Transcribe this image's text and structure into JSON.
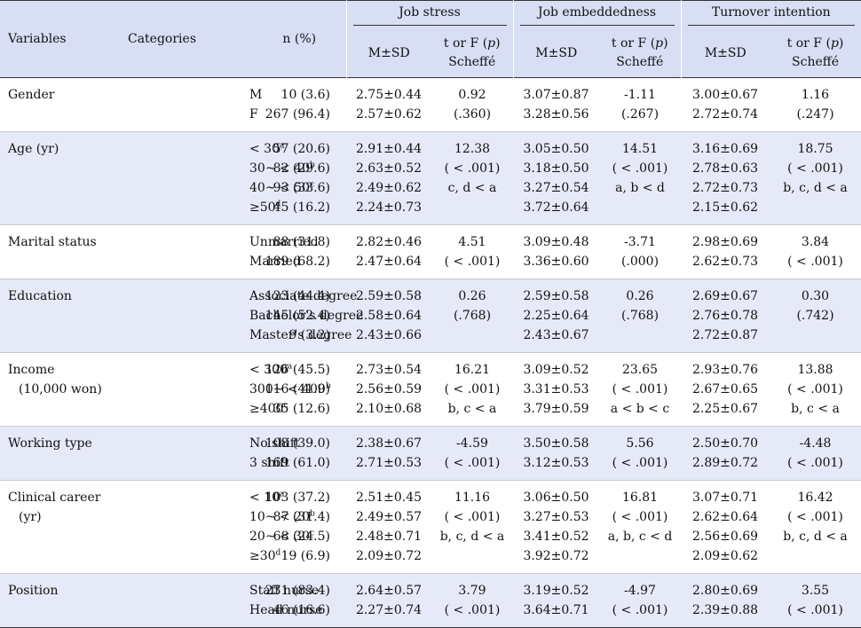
{
  "headers": {
    "variables": "Variables",
    "categories": "Categories",
    "n_pct": "n (%)",
    "groups": [
      "Job stress",
      "Job embeddedness",
      "Turnover intention"
    ],
    "msd": "M±SD",
    "test_a": "t or F (",
    "test_p": "p",
    "test_b": ")",
    "scheffe": "Scheffé"
  },
  "rows": [
    {
      "var": [
        "Gender"
      ],
      "cats": [
        [
          "M",
          ""
        ],
        [
          "F",
          ""
        ]
      ],
      "n": [
        "10 (3.6)",
        "267 (96.4)"
      ],
      "js_m": [
        "2.75±0.44",
        "2.57±0.62"
      ],
      "js_t": [
        "0.92",
        "(.360)"
      ],
      "je_m": [
        "3.07±0.87",
        "3.28±0.56"
      ],
      "je_t": [
        "-1.11",
        "(.267)"
      ],
      "ti_m": [
        "3.00±0.67",
        "2.72±0.74"
      ],
      "ti_t": [
        "1.16",
        "(.247)"
      ]
    },
    {
      "var": [
        "Age (yr)"
      ],
      "cats": [
        [
          "< 30",
          "a"
        ],
        [
          "30~ < 40",
          "b"
        ],
        [
          "40~ < 50",
          "c"
        ],
        [
          "≥50",
          "d"
        ]
      ],
      "n": [
        "57 (20.6)",
        "82 (29.6)",
        "93 (33.6)",
        "45 (16.2)"
      ],
      "js_m": [
        "2.91±0.44",
        "2.63±0.52",
        "2.49±0.62",
        "2.24±0.73"
      ],
      "js_t": [
        "12.38",
        "( < .001)",
        "c, d < a"
      ],
      "je_m": [
        "3.05±0.50",
        "3.18±0.50",
        "3.27±0.54",
        "3.72±0.64"
      ],
      "je_t": [
        "14.51",
        "( < .001)",
        "a, b < d"
      ],
      "ti_m": [
        "3.16±0.69",
        "2.78±0.63",
        "2.72±0.73",
        "2.15±0.62"
      ],
      "ti_t": [
        "18.75",
        "( < .001)",
        "b, c, d < a"
      ]
    },
    {
      "var": [
        "Marital status"
      ],
      "cats": [
        [
          "Unmarried",
          ""
        ],
        [
          "Married",
          ""
        ]
      ],
      "n": [
        "88 (31.8)",
        "189 (68.2)"
      ],
      "js_m": [
        "2.82±0.46",
        "2.47±0.64"
      ],
      "js_t": [
        "4.51",
        "( < .001)"
      ],
      "je_m": [
        "3.09±0.48",
        "3.36±0.60"
      ],
      "je_t": [
        "-3.71",
        "(.000)"
      ],
      "ti_m": [
        "2.98±0.69",
        "2.62±0.73"
      ],
      "ti_t": [
        "3.84",
        "( < .001)"
      ]
    },
    {
      "var": [
        "Education"
      ],
      "cats": [
        [
          "Associate degree",
          ""
        ],
        [
          "Bachelor's degree",
          ""
        ],
        [
          "Master's degree",
          ""
        ]
      ],
      "n": [
        "123 (44.4)",
        "145 (52.4)",
        "9 (3.2)"
      ],
      "js_m": [
        "2.59±0.58",
        "2.58±0.64",
        "2.43±0.66"
      ],
      "js_t": [
        "0.26",
        "(.768)"
      ],
      "je_m": [
        "2.59±0.58",
        "2.25±0.64",
        "2.43±0.67"
      ],
      "je_t": [
        "0.26",
        "(.768)"
      ],
      "ti_m": [
        "2.69±0.67",
        "2.76±0.78",
        "2.72±0.87"
      ],
      "ti_t": [
        "0.30",
        "(.742)"
      ]
    },
    {
      "var": [
        "Income",
        "(10,000 won)"
      ],
      "cats": [
        [
          "< 300",
          "a"
        ],
        [
          "300~ < 400",
          "b"
        ],
        [
          "≥400",
          "c"
        ]
      ],
      "n": [
        "126 (45.5)",
        "116 (41.9)",
        "35 (12.6)"
      ],
      "js_m": [
        "2.73±0.54",
        "2.56±0.59",
        "2.10±0.68"
      ],
      "js_t": [
        "16.21",
        "( < .001)",
        "b, c < a"
      ],
      "je_m": [
        "3.09±0.52",
        "3.31±0.53",
        "3.79±0.59"
      ],
      "je_t": [
        "23.65",
        "( < .001)",
        "a < b < c"
      ],
      "ti_m": [
        "2.93±0.76",
        "2.67±0.65",
        "2.25±0.67"
      ],
      "ti_t": [
        "13.88",
        "( < .001)",
        "b, c < a"
      ]
    },
    {
      "var": [
        "Working type"
      ],
      "cats": [
        [
          "No shift",
          ""
        ],
        [
          "3 shift",
          ""
        ]
      ],
      "n": [
        "108 (39.0)",
        "169 (61.0)"
      ],
      "js_m": [
        "2.38±0.67",
        "2.71±0.53"
      ],
      "js_t": [
        "-4.59",
        "( < .001)"
      ],
      "je_m": [
        "3.50±0.58",
        "3.12±0.53"
      ],
      "je_t": [
        "5.56",
        "( < .001)"
      ],
      "ti_m": [
        "2.50±0.70",
        "2.89±0.72"
      ],
      "ti_t": [
        "-4.48",
        "( < .001)"
      ]
    },
    {
      "var": [
        "Clinical career",
        "(yr)"
      ],
      "cats": [
        [
          "< 10",
          "a"
        ],
        [
          "10~ < 20",
          "b"
        ],
        [
          "20~ < 30",
          "c"
        ],
        [
          "≥30",
          "d"
        ]
      ],
      "n": [
        "103 (37.2)",
        "87 (31.4)",
        "68 (24.5)",
        "19 (6.9)"
      ],
      "js_m": [
        "2.51±0.45",
        "2.49±0.57",
        "2.48±0.71",
        "2.09±0.72"
      ],
      "js_t": [
        "11.16",
        "( < .001)",
        "b, c, d < a"
      ],
      "je_m": [
        "3.06±0.50",
        "3.27±0.53",
        "3.41±0.52",
        "3.92±0.72"
      ],
      "je_t": [
        "16.81",
        "( < .001)",
        "a, b, c < d"
      ],
      "ti_m": [
        "3.07±0.71",
        "2.62±0.64",
        "2.56±0.69",
        "2.09±0.62"
      ],
      "ti_t": [
        "16.42",
        "( < .001)",
        "b, c, d < a"
      ]
    },
    {
      "var": [
        "Position"
      ],
      "cats": [
        [
          "Staff nurse",
          ""
        ],
        [
          "Head nurse",
          ""
        ]
      ],
      "n": [
        "231 (83.4)",
        "46 (16.6)"
      ],
      "js_m": [
        "2.64±0.57",
        "2.27±0.74"
      ],
      "js_t": [
        "3.79",
        "( < .001)"
      ],
      "je_m": [
        "3.19±0.52",
        "3.64±0.71"
      ],
      "je_t": [
        "-4.97",
        "( < .001)"
      ],
      "ti_m": [
        "2.80±0.69",
        "2.39±0.88"
      ],
      "ti_t": [
        "3.55",
        "( < .001)"
      ]
    }
  ]
}
